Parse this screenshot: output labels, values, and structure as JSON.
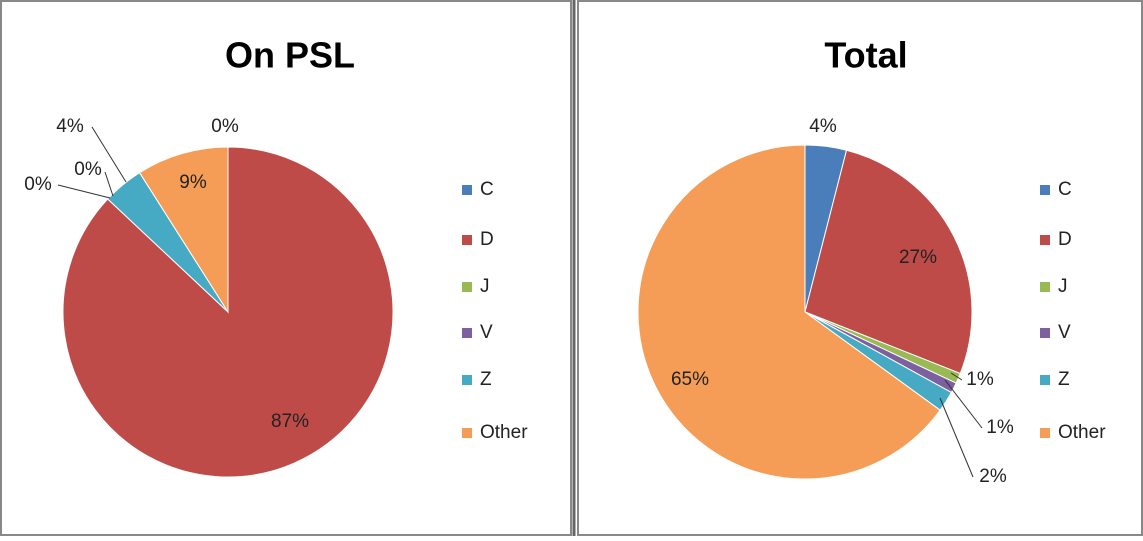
{
  "chart_data": [
    {
      "type": "pie",
      "title": "On PSL",
      "categories": [
        "C",
        "D",
        "J",
        "V",
        "Z",
        "Other"
      ],
      "values": [
        0,
        87,
        0,
        0,
        4,
        9
      ],
      "value_labels": [
        "0%",
        "87%",
        "0%",
        "0%",
        "4%",
        "9%"
      ],
      "colors": [
        "#4a7ebb",
        "#be4b48",
        "#98b954",
        "#7d60a0",
        "#46aac5",
        "#f59d56"
      ],
      "legend": "right"
    },
    {
      "type": "pie",
      "title": "Total",
      "categories": [
        "C",
        "D",
        "J",
        "V",
        "Z",
        "Other"
      ],
      "values": [
        4,
        27,
        1,
        1,
        2,
        65
      ],
      "value_labels": [
        "4%",
        "27%",
        "1%",
        "1%",
        "2%",
        "65%"
      ],
      "colors": [
        "#4a7ebb",
        "#be4b48",
        "#98b954",
        "#7d60a0",
        "#46aac5",
        "#f59d56"
      ],
      "legend": "right"
    }
  ]
}
